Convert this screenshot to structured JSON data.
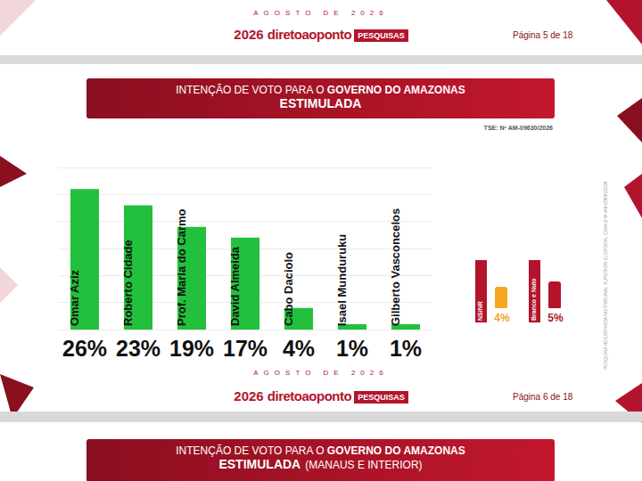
{
  "page": {
    "top_header": {
      "date": "AGOSTO DE 2026",
      "logo": [
        "2026",
        "diretoaoponto",
        "PESQUISAS"
      ],
      "page": "Página 5 de 18"
    },
    "banner": {
      "line1_prefix": "INTENÇÃO DE VOTO PARA O ",
      "line1_bold": "GOVERNO DO AMAZONAS",
      "line2_bold": "ESTIMULADA",
      "line2_rest": ""
    },
    "registration": "TSE: Nº AM-09630/2026",
    "side_note": "PESQUISA REGISTRADA NO TRIBUNAL SUPERIOR ELEITORAL COM O Nº AM-09630/2026",
    "extras": [
      {
        "label": "NS/NR",
        "value": 4,
        "value_label": "4%",
        "color": "#f5a623"
      },
      {
        "label": "Branco e Nulo",
        "value": 5,
        "value_label": "5%",
        "color": "#b3142c"
      }
    ],
    "bottom_header": {
      "date": "AGOSTO DE 2026",
      "logo": [
        "2026",
        "diretoaoponto",
        "PESQUISAS"
      ],
      "page": "Página 6 de 18"
    },
    "next_banner": {
      "line1_prefix": "INTENÇÃO DE VOTO PARA O ",
      "line1_bold": "GOVERNO DO AMAZONAS",
      "line2_bold": "ESTIMULADA",
      "line2_rest": "(MANAUS E INTERIOR)"
    }
  },
  "chart_data": {
    "type": "bar",
    "categories": [
      "Omar Aziz",
      "Roberto Cidade",
      "Prof. Maria do Carmo",
      "David Almeida",
      "Cabo Daciolo",
      "Isael Munduruku",
      "Gilberto Vasconcelos"
    ],
    "values": [
      26,
      23,
      19,
      17,
      4,
      1,
      1
    ],
    "value_labels": [
      "26%",
      "23%",
      "19%",
      "17%",
      "4%",
      "1%",
      "1%"
    ],
    "color": "#22c03c",
    "ylim": [
      0,
      30
    ],
    "yticks": [
      0,
      5,
      10,
      15,
      20,
      25,
      30
    ],
    "grid": true,
    "data_labels": true,
    "tick_labels": false
  }
}
